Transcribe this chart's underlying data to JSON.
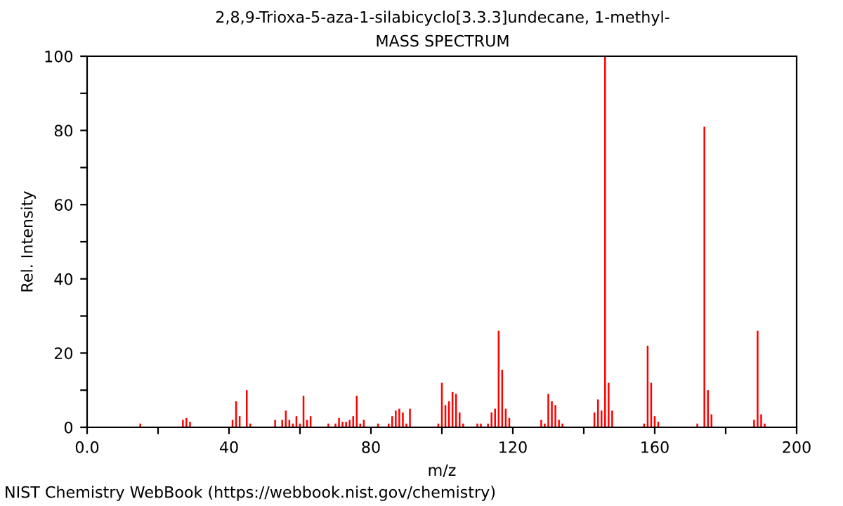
{
  "chart_data": {
    "type": "bar",
    "title": "2,8,9-Trioxa-5-aza-1-silabicyclo[3.3.3]undecane, 1-methyl-",
    "subtitle": "MASS SPECTRUM",
    "xlabel": "m/z",
    "ylabel": "Rel. Intensity",
    "x": [
      15,
      27,
      28,
      29,
      41,
      42,
      43,
      45,
      46,
      53,
      55,
      56,
      57,
      58,
      59,
      60,
      61,
      62,
      63,
      68,
      70,
      71,
      72,
      73,
      74,
      75,
      76,
      77,
      78,
      82,
      85,
      86,
      87,
      88,
      89,
      90,
      91,
      99,
      100,
      101,
      102,
      103,
      104,
      105,
      106,
      110,
      111,
      113,
      114,
      115,
      116,
      117,
      118,
      119,
      128,
      129,
      130,
      131,
      132,
      133,
      134,
      143,
      144,
      145,
      146,
      147,
      148,
      157,
      158,
      159,
      160,
      161,
      172,
      174,
      175,
      176,
      188,
      189,
      190,
      191
    ],
    "values": [
      1,
      2,
      2.5,
      1.5,
      2,
      7,
      3,
      10,
      1,
      2,
      2,
      4.5,
      2,
      1,
      3,
      1,
      8.5,
      2,
      3,
      1,
      1,
      2.5,
      1.5,
      1.5,
      2,
      3,
      8.5,
      1,
      2,
      1,
      1,
      3,
      4.5,
      5,
      4,
      1,
      5,
      1,
      12,
      6,
      7,
      9.5,
      9,
      4,
      1,
      1,
      1,
      1,
      4,
      5,
      26,
      15.5,
      5,
      2.5,
      2,
      1,
      9,
      7,
      6,
      2,
      1,
      4,
      7.5,
      4.5,
      100,
      12,
      4.5,
      1,
      22,
      12,
      3,
      1.5,
      1,
      81,
      10,
      3.5,
      2,
      26,
      3.5,
      1
    ],
    "color": "#ff0000",
    "xlim": [
      0,
      200
    ],
    "xticks": [
      {
        "value": 0,
        "label": "0.0"
      },
      {
        "value": 20,
        "label": null
      },
      40,
      {
        "value": 60,
        "label": null
      },
      80,
      {
        "value": 100,
        "label": null
      },
      120,
      {
        "value": 140,
        "label": null
      },
      160,
      {
        "value": 180,
        "label": null
      },
      200
    ],
    "ylim": [
      0,
      100
    ],
    "yticks": [
      0,
      {
        "value": 10,
        "label": null
      },
      20,
      {
        "value": 30,
        "label": null
      },
      40,
      {
        "value": 50,
        "label": null
      },
      60,
      {
        "value": 70,
        "label": null
      },
      80,
      {
        "value": 90,
        "label": null
      },
      100
    ],
    "grid": false,
    "annotations": [
      "NIST Chemistry WebBook (https://webbook.nist.gov/chemistry)"
    ]
  }
}
